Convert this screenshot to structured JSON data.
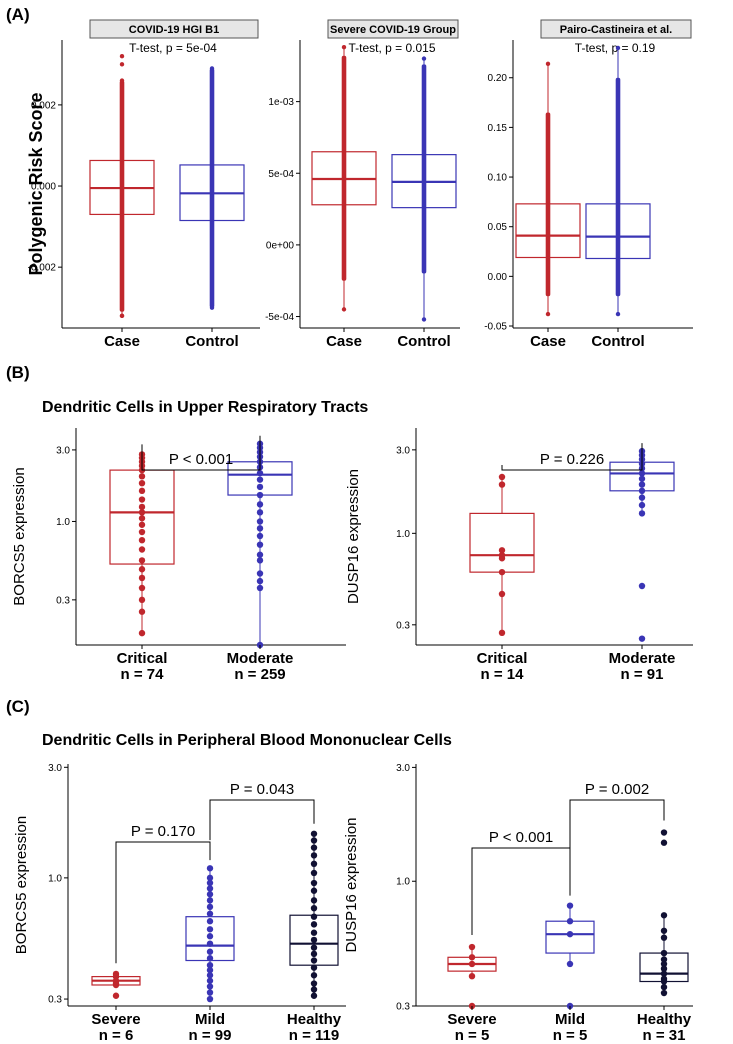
{
  "colors": {
    "case": "#c0272d",
    "control": "#3a35b5",
    "healthy": "#111133"
  },
  "panels": [
    {
      "label": "(A)"
    },
    {
      "label": "(B)",
      "title": "Dendritic Cells in Upper Respiratory Tracts"
    },
    {
      "label": "(C)",
      "title": "Dendritic Cells in Peripheral Blood Mononuclear Cells"
    }
  ],
  "chart_data": [
    {
      "type": "box",
      "panel": "A",
      "facet": "COVID-19 HGI B1",
      "ylabel": "Polygenic Risk Score",
      "stat": "T-test, p = 5e-04",
      "ylim": [
        -0.0035,
        0.0036
      ],
      "yticks": [
        -0.002,
        0.0,
        0.002
      ],
      "ytick_labels": [
        "-0.002",
        "0.000",
        "0.002"
      ],
      "groups": [
        {
          "name": "Case",
          "tick": "Case",
          "color": "case",
          "q1": -0.0007,
          "median": -5e-05,
          "q3": 0.00063,
          "wmin": -0.0032,
          "wmax": 0.0026,
          "outliers": [
            0.0032,
            0.003,
            -0.0032
          ],
          "dense": [
            -0.0031,
            0.0026
          ]
        },
        {
          "name": "Control",
          "tick": "Control",
          "color": "control",
          "q1": -0.00085,
          "median": -0.00018,
          "q3": 0.00052,
          "wmin": -0.003,
          "wmax": 0.0029,
          "outliers": [],
          "dense": [
            -0.003,
            0.0029
          ]
        }
      ]
    },
    {
      "type": "box",
      "panel": "A",
      "facet": "Severe COVID-19 Group",
      "ylabel": "",
      "stat": "T-test, p = 0.015",
      "ylim": [
        -0.00058,
        0.00143
      ],
      "yticks": [
        -0.0005,
        0.0,
        0.0005,
        0.001
      ],
      "ytick_labels": [
        "-5e-04",
        "0e+00",
        "5e-04",
        "1e-03"
      ],
      "groups": [
        {
          "name": "Case",
          "tick": "Case",
          "color": "case",
          "q1": 0.00028,
          "median": 0.00046,
          "q3": 0.00065,
          "wmin": -0.00045,
          "wmax": 0.00138,
          "outliers": [],
          "dense": [
            -0.00025,
            0.00132
          ]
        },
        {
          "name": "Control",
          "tick": "Control",
          "color": "control",
          "q1": 0.00026,
          "median": 0.00044,
          "q3": 0.00063,
          "wmin": -0.00052,
          "wmax": 0.0013,
          "outliers": [],
          "dense": [
            -0.0002,
            0.00126
          ]
        }
      ]
    },
    {
      "type": "box",
      "panel": "A",
      "facet": "Pairo-Castineira et al.",
      "ylabel": "",
      "stat": "T-test, p = 0.19",
      "ylim": [
        -0.052,
        0.238
      ],
      "yticks": [
        -0.05,
        0.0,
        0.05,
        0.1,
        0.15,
        0.2
      ],
      "ytick_labels": [
        "-0.05",
        "0.00",
        "0.05",
        "0.10",
        "0.15",
        "0.20"
      ],
      "groups": [
        {
          "name": "Case",
          "tick": "Case",
          "color": "case",
          "q1": 0.019,
          "median": 0.041,
          "q3": 0.073,
          "wmin": -0.038,
          "wmax": 0.214,
          "outliers": [],
          "dense": [
            -0.02,
            0.165
          ]
        },
        {
          "name": "Control",
          "tick": "Control",
          "color": "control",
          "q1": 0.018,
          "median": 0.04,
          "q3": 0.073,
          "wmin": -0.038,
          "wmax": 0.23,
          "outliers": [],
          "dense": [
            -0.02,
            0.2
          ]
        }
      ]
    },
    {
      "type": "box",
      "panel": "B",
      "scale": "log",
      "ylabel": "BORCS5 expression",
      "ylim": [
        0.15,
        4.2
      ],
      "yticks": [
        0.3,
        1.0,
        3.0
      ],
      "ytick_labels": [
        "0.3",
        "1.0",
        "3.0"
      ],
      "groups": [
        {
          "name": "Critical",
          "tick": "Critical",
          "n_label": "n = 74",
          "color": "case",
          "q1": 0.52,
          "median": 1.15,
          "q3": 2.2,
          "wmin": 0.18,
          "wmax": 2.8,
          "points": [
            2.8,
            2.65,
            2.5,
            2.35,
            2.2,
            2.0,
            1.8,
            1.6,
            1.4,
            1.25,
            1.15,
            1.05,
            0.95,
            0.85,
            0.75,
            0.65,
            0.55,
            0.48,
            0.42,
            0.36,
            0.3,
            0.25,
            0.18
          ]
        },
        {
          "name": "Moderate",
          "tick": "Moderate",
          "n_label": "n = 259",
          "color": "control",
          "q1": 1.5,
          "median": 2.05,
          "q3": 2.5,
          "wmin": 0.15,
          "wmax": 3.3,
          "points": [
            3.3,
            3.1,
            2.9,
            2.7,
            2.5,
            2.3,
            2.1,
            1.9,
            1.7,
            1.5,
            1.3,
            1.15,
            1.0,
            0.9,
            0.8,
            0.7,
            0.6,
            0.55,
            0.45,
            0.4,
            0.36,
            0.15
          ]
        }
      ],
      "comparisons": [
        {
          "from": 0,
          "to": 1,
          "label": "P < 0.001"
        }
      ]
    },
    {
      "type": "box",
      "panel": "B",
      "scale": "log",
      "ylabel": "DUSP16 expression",
      "ylim": [
        0.23,
        4.0
      ],
      "yticks": [
        0.3,
        1.0,
        3.0
      ],
      "ytick_labels": [
        "0.3",
        "1.0",
        "3.0"
      ],
      "groups": [
        {
          "name": "Critical",
          "tick": "Critical",
          "n_label": "n = 14",
          "color": "case",
          "q1": 0.6,
          "median": 0.75,
          "q3": 1.3,
          "wmin": 0.27,
          "wmax": 2.1,
          "points": [
            2.1,
            1.9,
            0.8,
            0.75,
            0.72,
            0.6,
            0.45,
            0.27
          ]
        },
        {
          "name": "Moderate",
          "tick": "Moderate",
          "n_label": "n = 91",
          "color": "control",
          "q1": 1.75,
          "median": 2.2,
          "q3": 2.55,
          "wmin": 1.3,
          "wmax": 2.95,
          "points": [
            2.95,
            2.8,
            2.65,
            2.5,
            2.35,
            2.2,
            2.05,
            1.9,
            1.75,
            1.6,
            1.45,
            1.3,
            0.5,
            0.25
          ]
        }
      ],
      "comparisons": [
        {
          "from": 0,
          "to": 1,
          "label": "P = 0.226"
        }
      ]
    },
    {
      "type": "box",
      "panel": "C",
      "scale": "log",
      "ylabel": "BORCS5 expression",
      "ylim": [
        0.28,
        3.1
      ],
      "yticks": [
        0.3,
        1.0,
        3.0
      ],
      "ytick_labels": [
        "0.3",
        "1.0",
        "3.0"
      ],
      "groups": [
        {
          "name": "Severe",
          "tick": "Severe",
          "n_label": "n = 6",
          "color": "case",
          "q1": 0.345,
          "median": 0.36,
          "q3": 0.375,
          "wmin": 0.34,
          "wmax": 0.38,
          "points": [
            0.385,
            0.375,
            0.36,
            0.35,
            0.345,
            0.31
          ]
        },
        {
          "name": "Mild",
          "tick": "Mild",
          "n_label": "n = 99",
          "color": "control",
          "q1": 0.44,
          "median": 0.51,
          "q3": 0.68,
          "wmin": 0.3,
          "wmax": 1.08,
          "points": [
            1.1,
            1.0,
            0.95,
            0.9,
            0.85,
            0.8,
            0.75,
            0.7,
            0.65,
            0.6,
            0.56,
            0.52,
            0.48,
            0.45,
            0.42,
            0.4,
            0.38,
            0.36,
            0.34,
            0.32,
            0.3
          ]
        },
        {
          "name": "Healthy",
          "tick": "Healthy",
          "n_label": "n = 119",
          "color": "healthy",
          "q1": 0.42,
          "median": 0.52,
          "q3": 0.69,
          "wmin": 0.31,
          "wmax": 1.55,
          "points": [
            1.55,
            1.45,
            1.35,
            1.25,
            1.15,
            1.05,
            0.95,
            0.88,
            0.8,
            0.74,
            0.68,
            0.63,
            0.58,
            0.54,
            0.5,
            0.47,
            0.44,
            0.41,
            0.38,
            0.35,
            0.33,
            0.31
          ]
        }
      ],
      "comparisons": [
        {
          "from": 0,
          "to": 1,
          "label": "P = 0.170"
        },
        {
          "from": 1,
          "to": 2,
          "label": "P = 0.043"
        }
      ]
    },
    {
      "type": "box",
      "panel": "C",
      "scale": "log",
      "ylabel": "DUSP16 expression",
      "ylim": [
        0.3,
        3.1
      ],
      "yticks": [
        0.3,
        1.0,
        3.0
      ],
      "ytick_labels": [
        "0.3",
        "1.0",
        "3.0"
      ],
      "groups": [
        {
          "name": "Severe",
          "tick": "Severe",
          "n_label": "n = 5",
          "color": "case",
          "q1": 0.42,
          "median": 0.45,
          "q3": 0.48,
          "wmin": 0.4,
          "wmax": 0.53,
          "points": [
            0.53,
            0.48,
            0.45,
            0.4,
            0.3
          ]
        },
        {
          "name": "Mild",
          "tick": "Mild",
          "n_label": "n = 5",
          "color": "control",
          "q1": 0.5,
          "median": 0.6,
          "q3": 0.68,
          "wmin": 0.45,
          "wmax": 0.79,
          "points": [
            0.79,
            0.68,
            0.6,
            0.45,
            0.3
          ]
        },
        {
          "name": "Healthy",
          "tick": "Healthy",
          "n_label": "n = 31",
          "color": "healthy",
          "q1": 0.38,
          "median": 0.41,
          "q3": 0.5,
          "wmin": 0.34,
          "wmax": 0.72,
          "points": [
            1.6,
            1.45,
            0.72,
            0.62,
            0.58,
            0.5,
            0.47,
            0.45,
            0.43,
            0.41,
            0.39,
            0.38,
            0.36,
            0.34
          ]
        }
      ],
      "comparisons": [
        {
          "from": 0,
          "to": 1,
          "label": "P < 0.001"
        },
        {
          "from": 1,
          "to": 2,
          "label": "P = 0.002"
        }
      ]
    }
  ]
}
